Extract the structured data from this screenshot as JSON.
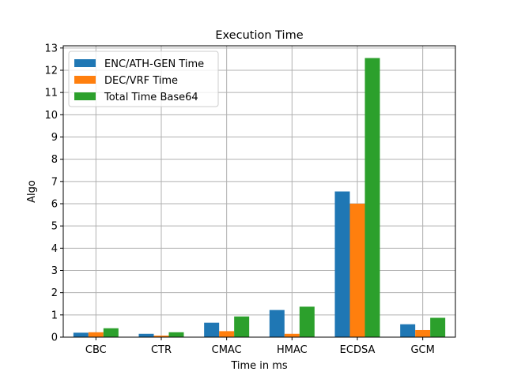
{
  "chart_data": {
    "type": "bar",
    "title": "Execution Time",
    "xlabel": "Time in ms",
    "ylabel": "Algo",
    "categories": [
      "CBC",
      "CTR",
      "CMAC",
      "HMAC",
      "ECDSA",
      "GCM"
    ],
    "series": [
      {
        "name": "ENC/ATH-GEN Time",
        "color": "#1f77b4",
        "values": [
          0.2,
          0.15,
          0.65,
          1.22,
          6.55,
          0.58
        ]
      },
      {
        "name": "DEC/VRF Time",
        "color": "#ff7f0e",
        "values": [
          0.22,
          0.07,
          0.27,
          0.15,
          6.0,
          0.32
        ]
      },
      {
        "name": "Total Time Base64",
        "color": "#2ca02c",
        "values": [
          0.4,
          0.22,
          0.93,
          1.37,
          12.55,
          0.87
        ]
      }
    ],
    "ylim": [
      0,
      13.1
    ],
    "yticks": [
      0,
      1,
      2,
      3,
      4,
      5,
      6,
      7,
      8,
      9,
      10,
      11,
      12,
      13
    ],
    "grid": true,
    "legend_position": "top-left"
  }
}
